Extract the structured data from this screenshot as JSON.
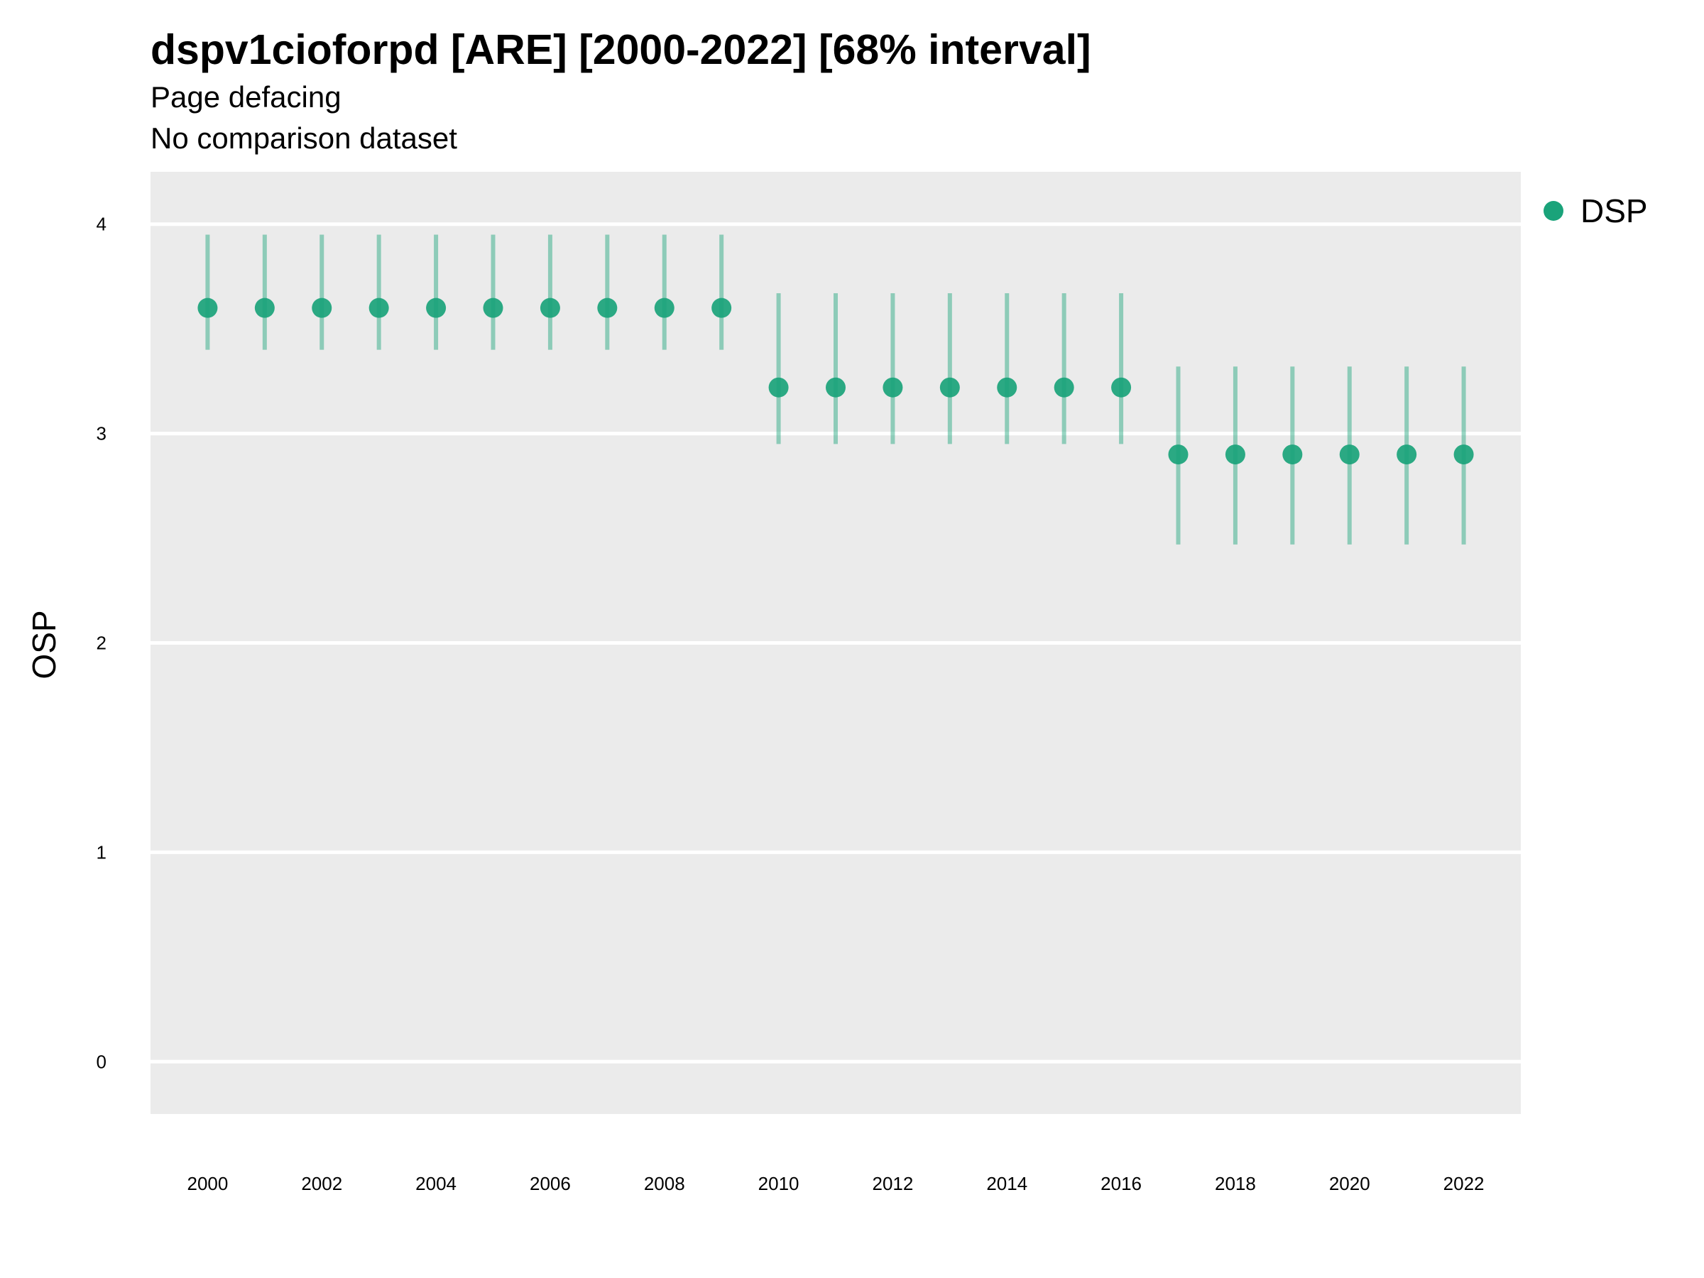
{
  "chart_data": {
    "type": "scatter",
    "title": "dspv1cioforpd [ARE] [2000-2022] [68% interval]",
    "subtitle": "Page defacing",
    "subtitle2": "No comparison dataset",
    "xlabel": "",
    "ylabel": "OSP",
    "xlim": [
      1999.0,
      2023.0
    ],
    "ylim": [
      -0.25,
      4.25
    ],
    "yticks": [
      0,
      1,
      2,
      3,
      4
    ],
    "xticks": [
      2000,
      2002,
      2004,
      2006,
      2008,
      2010,
      2012,
      2014,
      2016,
      2018,
      2020,
      2022
    ],
    "grid": true,
    "legend_position": "right",
    "series": [
      {
        "name": "DSP",
        "color": "#1aa37a",
        "x": [
          2000,
          2001,
          2002,
          2003,
          2004,
          2005,
          2006,
          2007,
          2008,
          2009,
          2010,
          2011,
          2012,
          2013,
          2014,
          2015,
          2016,
          2017,
          2018,
          2019,
          2020,
          2021,
          2022
        ],
        "y": [
          3.6,
          3.6,
          3.6,
          3.6,
          3.6,
          3.6,
          3.6,
          3.6,
          3.6,
          3.6,
          3.22,
          3.22,
          3.22,
          3.22,
          3.22,
          3.22,
          3.22,
          2.9,
          2.9,
          2.9,
          2.9,
          2.9,
          2.9
        ],
        "lower": [
          3.4,
          3.4,
          3.4,
          3.4,
          3.4,
          3.4,
          3.4,
          3.4,
          3.4,
          3.4,
          2.95,
          2.95,
          2.95,
          2.95,
          2.95,
          2.95,
          2.95,
          2.47,
          2.47,
          2.47,
          2.47,
          2.47,
          2.47
        ],
        "upper": [
          3.95,
          3.95,
          3.95,
          3.95,
          3.95,
          3.95,
          3.95,
          3.95,
          3.95,
          3.95,
          3.67,
          3.67,
          3.67,
          3.67,
          3.67,
          3.67,
          3.67,
          3.32,
          3.32,
          3.32,
          3.32,
          3.32,
          3.32
        ]
      }
    ]
  }
}
